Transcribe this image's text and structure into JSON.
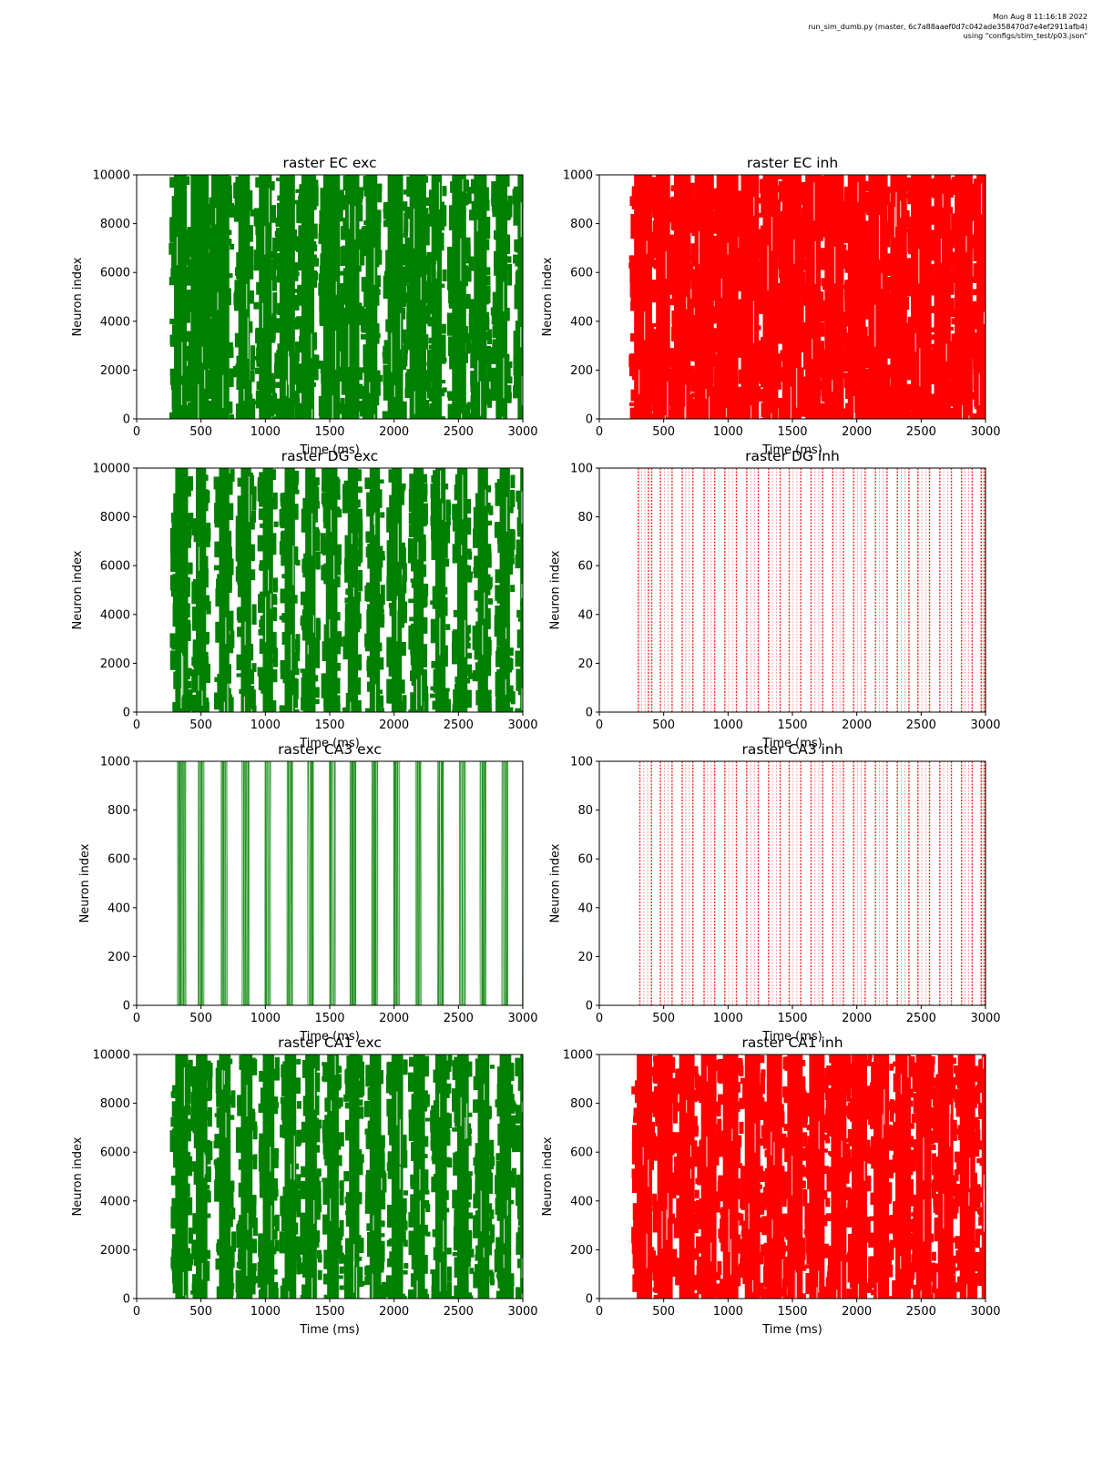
{
  "header": {
    "line1": "Mon Aug  8 11:16:18 2022",
    "line2": "run_sim_dumb.py (master, 6c7a88aaef0d7c042ade358470d7e4ef2911afb4)",
    "line3": "using \"configs/stim_test/p03.json\""
  },
  "colors": {
    "exc": "#008000",
    "inh": "#ff0000"
  },
  "chart_data": [
    {
      "type": "scatter",
      "title": "raster EC exc",
      "xlabel": "Time (ms)",
      "ylabel": "Neuron index",
      "xlim": [
        0,
        3000
      ],
      "ylim": [
        0,
        10000
      ],
      "xticks": [
        0,
        500,
        1000,
        1500,
        2000,
        2500,
        3000
      ],
      "yticks": [
        0,
        2000,
        4000,
        6000,
        8000,
        10000
      ],
      "color": "exc",
      "density": "solid",
      "bursts": [
        [
          290,
          390
        ],
        [
          420,
          560
        ],
        [
          580,
          720
        ],
        [
          790,
          880
        ],
        [
          950,
          1050
        ],
        [
          1110,
          1230
        ],
        [
          1280,
          1380
        ],
        [
          1450,
          1580
        ],
        [
          1620,
          1730
        ],
        [
          1780,
          1870
        ],
        [
          1950,
          2070
        ],
        [
          2120,
          2250
        ],
        [
          2290,
          2370
        ],
        [
          2450,
          2560
        ],
        [
          2620,
          2720
        ],
        [
          2790,
          2880
        ],
        [
          2960,
          3000
        ]
      ]
    },
    {
      "type": "scatter",
      "title": "raster EC inh",
      "xlabel": "Time (ms)",
      "ylabel": "Neuron index",
      "xlim": [
        0,
        3000
      ],
      "ylim": [
        0,
        1000
      ],
      "xticks": [
        0,
        500,
        1000,
        1500,
        2000,
        2500,
        3000
      ],
      "yticks": [
        0,
        200,
        400,
        600,
        800,
        1000
      ],
      "color": "inh",
      "density": "solid",
      "bursts": [
        [
          270,
          410
        ],
        [
          440,
          550
        ],
        [
          580,
          710
        ],
        [
          740,
          890
        ],
        [
          910,
          1080
        ],
        [
          1100,
          1240
        ],
        [
          1270,
          1390
        ],
        [
          1420,
          1570
        ],
        [
          1600,
          1720
        ],
        [
          1750,
          1900
        ],
        [
          1930,
          2070
        ],
        [
          2090,
          2240
        ],
        [
          2260,
          2390
        ],
        [
          2420,
          2580
        ],
        [
          2600,
          2730
        ],
        [
          2760,
          2900
        ],
        [
          2930,
          3000
        ]
      ]
    },
    {
      "type": "scatter",
      "title": "raster DG exc",
      "xlabel": "Time (ms)",
      "ylabel": "Neuron index",
      "xlim": [
        0,
        3000
      ],
      "ylim": [
        0,
        10000
      ],
      "xticks": [
        0,
        500,
        1000,
        1500,
        2000,
        2500,
        3000
      ],
      "yticks": [
        0,
        2000,
        4000,
        6000,
        8000,
        10000
      ],
      "color": "exc",
      "density": "solid",
      "bursts": [
        [
          300,
          400
        ],
        [
          460,
          540
        ],
        [
          640,
          720
        ],
        [
          810,
          890
        ],
        [
          980,
          1060
        ],
        [
          1150,
          1230
        ],
        [
          1310,
          1390
        ],
        [
          1470,
          1560
        ],
        [
          1640,
          1720
        ],
        [
          1810,
          1890
        ],
        [
          1980,
          2060
        ],
        [
          2150,
          2230
        ],
        [
          2320,
          2400
        ],
        [
          2490,
          2570
        ],
        [
          2650,
          2730
        ],
        [
          2820,
          2900
        ],
        [
          2980,
          3000
        ]
      ]
    },
    {
      "type": "scatter",
      "title": "raster DG inh",
      "xlabel": "Time (ms)",
      "ylabel": "Neuron index",
      "xlim": [
        0,
        3000
      ],
      "ylim": [
        0,
        100
      ],
      "xticks": [
        0,
        500,
        1000,
        1500,
        2000,
        2500,
        3000
      ],
      "yticks": [
        0,
        20,
        40,
        60,
        80,
        100
      ],
      "color": "inh",
      "density": "light",
      "bursts": [
        [
          290,
          420
        ],
        [
          460,
          580
        ],
        [
          630,
          740
        ],
        [
          800,
          910
        ],
        [
          960,
          1080
        ],
        [
          1130,
          1250
        ],
        [
          1300,
          1420
        ],
        [
          1460,
          1580
        ],
        [
          1630,
          1750
        ],
        [
          1800,
          1910
        ],
        [
          1960,
          2080
        ],
        [
          2130,
          2250
        ],
        [
          2300,
          2420
        ],
        [
          2460,
          2580
        ],
        [
          2630,
          2750
        ],
        [
          2800,
          2910
        ],
        [
          2960,
          3000
        ]
      ]
    },
    {
      "type": "scatter",
      "title": "raster CA3 exc",
      "xlabel": "Time (ms)",
      "ylabel": "Neuron index",
      "xlim": [
        0,
        3000
      ],
      "ylim": [
        0,
        1000
      ],
      "xticks": [
        0,
        500,
        1000,
        1500,
        2000,
        2500,
        3000
      ],
      "yticks": [
        0,
        200,
        400,
        600,
        800,
        1000
      ],
      "color": "exc",
      "density": "medium",
      "bursts": [
        [
          300,
          400
        ],
        [
          460,
          540
        ],
        [
          640,
          720
        ],
        [
          800,
          890
        ],
        [
          980,
          1060
        ],
        [
          1150,
          1230
        ],
        [
          1310,
          1390
        ],
        [
          1480,
          1560
        ],
        [
          1640,
          1720
        ],
        [
          1810,
          1890
        ],
        [
          1980,
          2060
        ],
        [
          2150,
          2230
        ],
        [
          2320,
          2400
        ],
        [
          2490,
          2570
        ],
        [
          2650,
          2730
        ],
        [
          2820,
          2900
        ],
        [
          2980,
          3000
        ]
      ]
    },
    {
      "type": "scatter",
      "title": "raster CA3 inh",
      "xlabel": "Time (ms)",
      "ylabel": "Neuron index",
      "xlim": [
        0,
        3000
      ],
      "ylim": [
        0,
        100
      ],
      "xticks": [
        0,
        500,
        1000,
        1500,
        2000,
        2500,
        3000
      ],
      "yticks": [
        0,
        20,
        40,
        60,
        80,
        100
      ],
      "color": "inh",
      "density": "light",
      "bursts": [
        [
          300,
          420
        ],
        [
          460,
          580
        ],
        [
          630,
          740
        ],
        [
          800,
          910
        ],
        [
          960,
          1080
        ],
        [
          1130,
          1250
        ],
        [
          1300,
          1420
        ],
        [
          1460,
          1580
        ],
        [
          1630,
          1750
        ],
        [
          1800,
          1910
        ],
        [
          1960,
          2080
        ],
        [
          2130,
          2250
        ],
        [
          2300,
          2420
        ],
        [
          2460,
          2580
        ],
        [
          2630,
          2750
        ],
        [
          2800,
          2910
        ],
        [
          2960,
          3000
        ]
      ]
    },
    {
      "type": "scatter",
      "title": "raster CA1 exc",
      "xlabel": "Time (ms)",
      "ylabel": "Neuron index",
      "xlim": [
        0,
        3000
      ],
      "ylim": [
        0,
        10000
      ],
      "xticks": [
        0,
        500,
        1000,
        1500,
        2000,
        2500,
        3000
      ],
      "yticks": [
        0,
        2000,
        4000,
        6000,
        8000,
        10000
      ],
      "color": "exc",
      "density": "solid",
      "bursts": [
        [
          300,
          400
        ],
        [
          460,
          550
        ],
        [
          640,
          730
        ],
        [
          810,
          900
        ],
        [
          980,
          1070
        ],
        [
          1150,
          1240
        ],
        [
          1310,
          1400
        ],
        [
          1480,
          1570
        ],
        [
          1650,
          1730
        ],
        [
          1810,
          1900
        ],
        [
          1980,
          2070
        ],
        [
          2150,
          2240
        ],
        [
          2320,
          2410
        ],
        [
          2490,
          2580
        ],
        [
          2650,
          2740
        ],
        [
          2820,
          2910
        ],
        [
          2980,
          3000
        ]
      ]
    },
    {
      "type": "scatter",
      "title": "raster CA1 inh",
      "xlabel": "Time (ms)",
      "ylabel": "Neuron index",
      "xlim": [
        0,
        3000
      ],
      "ylim": [
        0,
        1000
      ],
      "xticks": [
        0,
        500,
        1000,
        1500,
        2000,
        2500,
        3000
      ],
      "yticks": [
        0,
        200,
        400,
        600,
        800,
        1000
      ],
      "color": "inh",
      "density": "solid",
      "bursts": [
        [
          290,
          410
        ],
        [
          450,
          570
        ],
        [
          620,
          740
        ],
        [
          790,
          910
        ],
        [
          960,
          1080
        ],
        [
          1130,
          1250
        ],
        [
          1300,
          1420
        ],
        [
          1460,
          1580
        ],
        [
          1630,
          1750
        ],
        [
          1800,
          1920
        ],
        [
          1960,
          2080
        ],
        [
          2130,
          2250
        ],
        [
          2300,
          2420
        ],
        [
          2460,
          2580
        ],
        [
          2630,
          2750
        ],
        [
          2800,
          2920
        ],
        [
          2970,
          3000
        ]
      ]
    }
  ]
}
